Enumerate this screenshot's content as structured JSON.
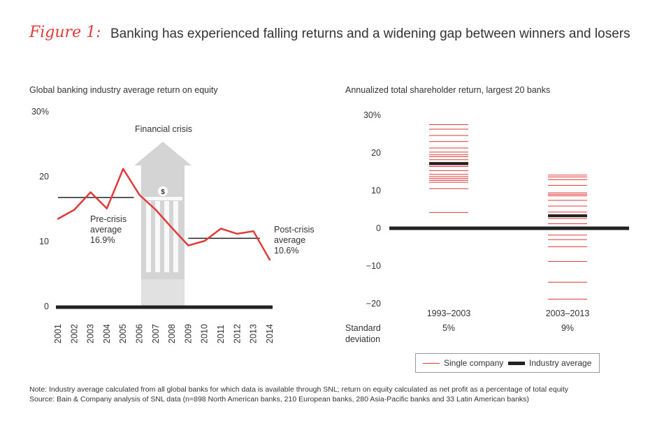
{
  "figure": {
    "label": "Figure 1:",
    "title": "Banking has experienced falling returns and a widening gap between winners and losers"
  },
  "colors": {
    "accent": "#e03a3a",
    "dark": "#222222",
    "arrow": "#d4d4d4"
  },
  "icons": {
    "crisis": "dollar-bank-arrow-icon",
    "symbol": "$"
  },
  "chart_data": [
    {
      "type": "line",
      "title": "Global banking industry average return on equity",
      "x": [
        "2001",
        "2002",
        "2003",
        "2004",
        "2005",
        "2006",
        "2007",
        "2008",
        "2009",
        "2010",
        "2011",
        "2012",
        "2013",
        "2014"
      ],
      "values": [
        13.6,
        15.0,
        17.7,
        15.2,
        21.3,
        17.3,
        15.0,
        12.2,
        9.5,
        10.2,
        12.1,
        11.3,
        11.7,
        7.3
      ],
      "ylim": [
        0,
        30
      ],
      "yticks": [
        {
          "value": 30,
          "label": "30%"
        },
        {
          "value": 20,
          "label": "20"
        },
        {
          "value": 10,
          "label": "10"
        },
        {
          "value": 0,
          "label": "0"
        }
      ],
      "annotations": {
        "crisis_label": "Financial crisis",
        "pre_crisis": {
          "lines": [
            "Pre-crisis",
            "average",
            "16.9%"
          ],
          "value": 16.9,
          "from": "2001",
          "to": "2006"
        },
        "post_crisis": {
          "lines": [
            "Post-crisis",
            "average",
            "10.6%"
          ],
          "value": 10.6,
          "from": "2009",
          "to": "2014"
        }
      }
    },
    {
      "type": "scatter",
      "title": "Annualized total shareholder return, largest 20 banks",
      "categories": [
        "1993–2003",
        "2003–2013"
      ],
      "ylim": [
        -20,
        30
      ],
      "yticks": [
        {
          "value": 30,
          "label": "30%"
        },
        {
          "value": 20,
          "label": "20"
        },
        {
          "value": 10,
          "label": "10"
        },
        {
          "value": 0,
          "label": "0"
        },
        {
          "value": -10,
          "label": "−10"
        },
        {
          "value": -20,
          "label": "−20"
        }
      ],
      "series": [
        {
          "name": "Single company",
          "values": [
            [
              27.5,
              26.3,
              24.6,
              23.0,
              21.3,
              20.2,
              19.5,
              19.0,
              18.2,
              17.2,
              16.8,
              16.4,
              15.3,
              14.3,
              13.7,
              13.2,
              12.7,
              12.2,
              10.5,
              4.2
            ],
            [
              14.1,
              13.6,
              12.9,
              11.4,
              9.4,
              9.0,
              8.6,
              7.4,
              5.9,
              4.3,
              3.6,
              3.2,
              2.6,
              1.2,
              -1.8,
              -3.0,
              -4.9,
              -8.8,
              -14.3,
              -18.8
            ]
          ]
        },
        {
          "name": "Industry average",
          "values": [
            17.2,
            3.3
          ]
        }
      ],
      "std_dev": {
        "label": [
          "Standard",
          "deviation"
        ],
        "values": [
          "5%",
          "9%"
        ]
      },
      "legend": {
        "single": "Single company",
        "average": "Industry average"
      }
    }
  ],
  "notes": {
    "note": "Note: Industry average calculated from all global banks for which data is available through SNL; return on equity calculated as net profit as a percentage of total equity",
    "source": "Source: Bain & Company analysis of SNL data (n=898 North American banks, 210 European banks, 280 Asia-Pacific banks and 33 Latin American banks)"
  }
}
